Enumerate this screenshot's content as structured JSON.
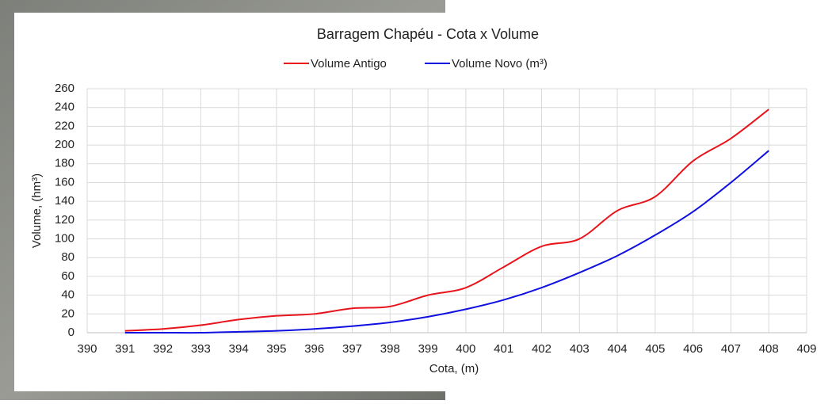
{
  "chart_data": {
    "type": "line",
    "title": "Barragem Chapéu - Cota x Volume",
    "x_label": "Cota, (m)",
    "y_label": "Volume, (hm³)",
    "x": [
      391,
      392,
      393,
      394,
      395,
      396,
      397,
      398,
      399,
      400,
      401,
      402,
      403,
      404,
      405,
      406,
      407,
      408
    ],
    "series": [
      {
        "name": "Volume Antigo",
        "color": "#e8141c",
        "values": [
          2,
          4,
          8,
          14,
          18,
          20,
          26,
          28,
          40,
          48,
          70,
          92,
          100,
          130,
          145,
          183,
          207,
          238
        ]
      },
      {
        "name": "Volume Novo (m³)",
        "color": "#1010e0",
        "values": [
          0,
          0,
          0,
          1,
          2,
          4,
          7,
          11,
          17,
          25,
          35,
          48,
          64,
          82,
          104,
          129,
          160,
          194
        ]
      }
    ],
    "xlim": [
      390,
      409
    ],
    "xticks": [
      390,
      391,
      392,
      393,
      394,
      395,
      396,
      397,
      398,
      399,
      400,
      401,
      402,
      403,
      404,
      405,
      406,
      407,
      408,
      409
    ],
    "ylim": [
      0,
      260
    ],
    "yticks": [
      0,
      20,
      40,
      60,
      80,
      100,
      120,
      140,
      160,
      180,
      200,
      220,
      240,
      260
    ],
    "grid": true,
    "legend": "top"
  }
}
